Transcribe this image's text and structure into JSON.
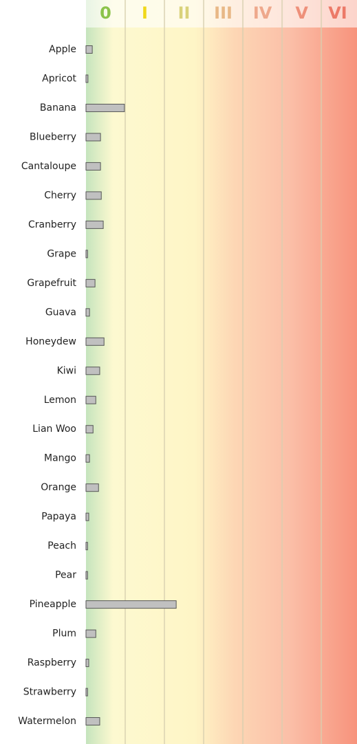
{
  "chart_data": {
    "type": "bar",
    "orientation": "horizontal",
    "categories": [
      "Apple",
      "Apricot",
      "Banana",
      "Blueberry",
      "Cantaloupe",
      "Cherry",
      "Cranberry",
      "Grape",
      "Grapefruit",
      "Guava",
      "Honeydew",
      "Kiwi",
      "Lemon",
      "Lian Woo",
      "Mango",
      "Orange",
      "Papaya",
      "Peach",
      "Pear",
      "Pineapple",
      "Plum",
      "Raspberry",
      "Strawberry",
      "Watermelon"
    ],
    "values": [
      0.16,
      0.05,
      0.98,
      0.37,
      0.37,
      0.39,
      0.44,
      0.04,
      0.23,
      0.09,
      0.46,
      0.35,
      0.25,
      0.18,
      0.09,
      0.32,
      0.07,
      0.04,
      0.04,
      2.3,
      0.25,
      0.07,
      0.04,
      0.35
    ],
    "color": "#c0c0c0",
    "xlim": [
      0,
      6.91
    ],
    "xticks": [
      0,
      {
        "value": 1,
        "label": "I"
      },
      {
        "value": 2,
        "label": "II"
      },
      {
        "value": 3,
        "label": "III"
      },
      {
        "value": 4,
        "label": "IV"
      },
      {
        "value": 5,
        "label": "V"
      },
      {
        "value": 6,
        "label": "VI"
      }
    ],
    "xtick_colors": [
      "#8bc34a",
      "#f0d81a",
      "#d9d27a",
      "#e8b886",
      "#eea88c",
      "#ee907a",
      "#ec7a68"
    ],
    "grid": true
  }
}
